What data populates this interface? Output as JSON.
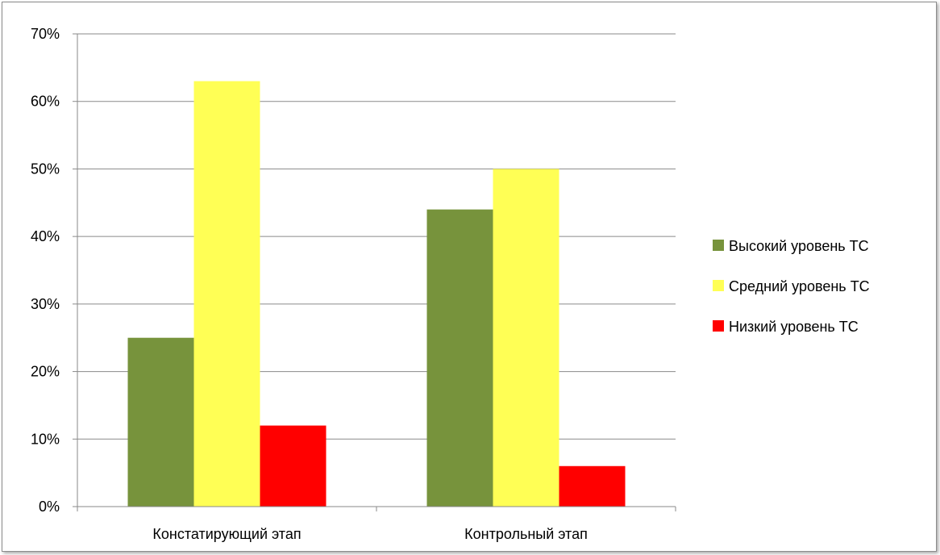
{
  "chart_data": {
    "type": "bar",
    "categories": [
      "Констатирующий этап",
      "Контрольный этап"
    ],
    "series": [
      {
        "name": "Высокий уровень ТС",
        "color": "#77933c",
        "values": [
          0.25,
          0.44
        ]
      },
      {
        "name": "Средний уровень ТС",
        "color": "#ffff55",
        "values": [
          0.63,
          0.5
        ]
      },
      {
        "name": "Низкий уровень ТС",
        "color": "#ff0000",
        "values": [
          0.12,
          0.06
        ]
      }
    ],
    "ylim": [
      0,
      0.7
    ],
    "yticks": [
      0,
      0.1,
      0.2,
      0.3,
      0.4,
      0.5,
      0.6,
      0.7
    ],
    "ytick_labels": [
      "0%",
      "10%",
      "20%",
      "30%",
      "40%",
      "50%",
      "60%",
      "70%"
    ],
    "grid": true,
    "legend_position": "right",
    "title": "",
    "xlabel": "",
    "ylabel": ""
  }
}
